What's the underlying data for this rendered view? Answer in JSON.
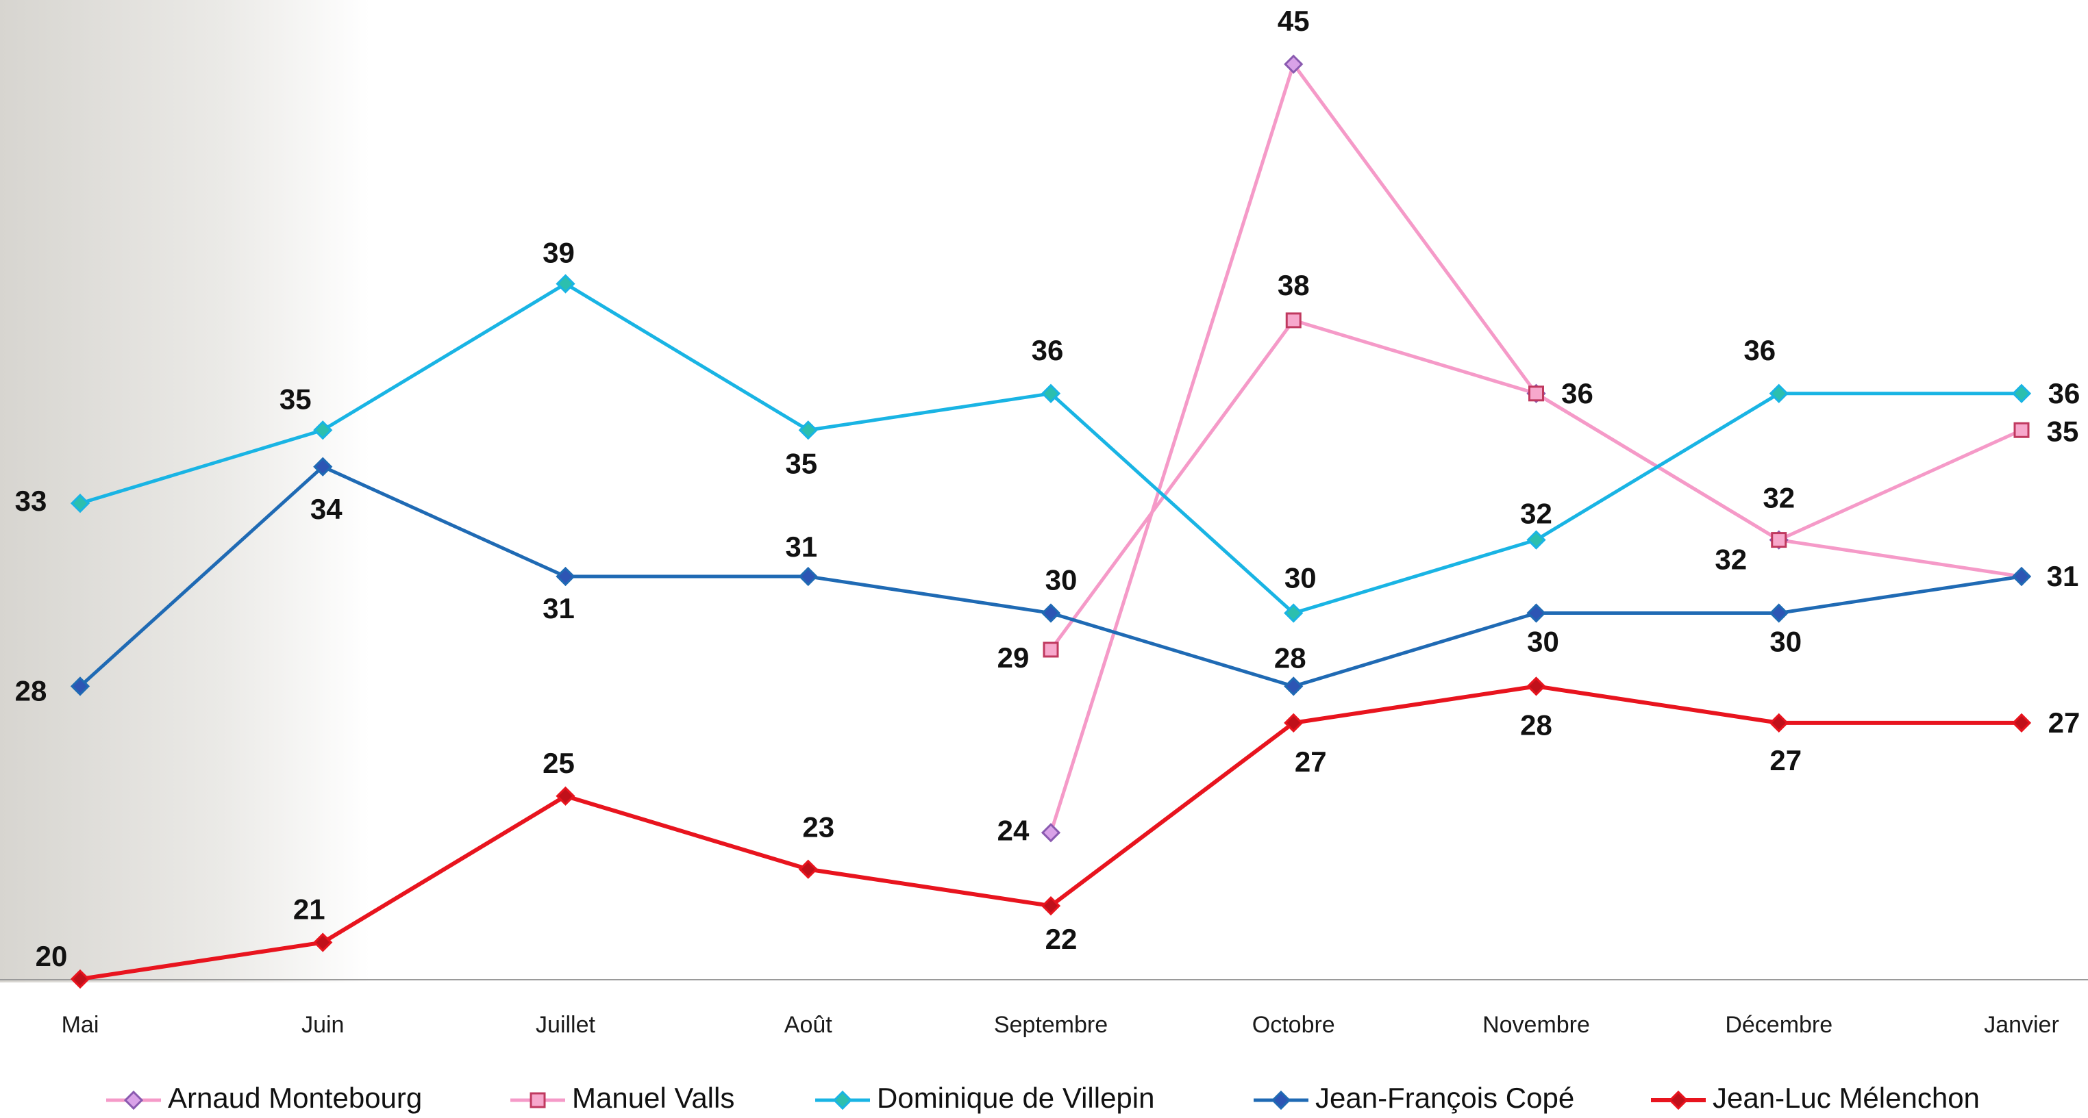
{
  "chart_data": {
    "type": "line",
    "categories": [
      "Mai",
      "Juin",
      "Juillet",
      "Août",
      "Septembre",
      "Octobre",
      "Novembre",
      "Décembre",
      "Janvier"
    ],
    "ylim": [
      19,
      47
    ],
    "grid": false,
    "legend_position": "bottom",
    "series": [
      {
        "name": "Arnaud Montebourg",
        "color": "#f59ac8",
        "marker": "diamond",
        "marker_fill": "#d9a2e8",
        "marker_stroke": "#8a5ab0",
        "values": [
          null,
          null,
          null,
          null,
          24,
          45,
          36,
          32,
          31
        ]
      },
      {
        "name": "Manuel Valls",
        "color": "#f59ac8",
        "marker": "square",
        "marker_fill": "#f7a8cc",
        "marker_stroke": "#c0395f",
        "values": [
          null,
          null,
          null,
          null,
          29,
          38,
          36,
          32,
          35
        ]
      },
      {
        "name": "Dominique de Villepin",
        "color": "#19b4e4",
        "marker": "diamond",
        "marker_fill": "#2cbfae",
        "marker_stroke": "#19b4e4",
        "values": [
          33,
          35,
          39,
          35,
          36,
          30,
          32,
          36,
          36
        ]
      },
      {
        "name": "Jean-François Copé",
        "color": "#1f6ab4",
        "marker": "diamond",
        "marker_fill": "#2d55b4",
        "marker_stroke": "#1f6ab4",
        "values": [
          28,
          34,
          31,
          31,
          30,
          28,
          30,
          30,
          31
        ]
      },
      {
        "name": "Jean-Luc Mélenchon",
        "color": "#e8141e",
        "marker": "diamond",
        "marker_fill": "#c0101a",
        "marker_stroke": "#e8141e",
        "values": [
          20,
          21,
          25,
          23,
          22,
          27,
          28,
          27,
          27
        ]
      }
    ],
    "data_labels": [
      {
        "text": "24"
      },
      {
        "text": "45"
      },
      {
        "text": "36"
      },
      {
        "text": "32"
      },
      {
        "text": "29"
      },
      {
        "text": "38"
      },
      {
        "text": "32"
      },
      {
        "text": "35"
      },
      {
        "text": "33"
      },
      {
        "text": "35"
      },
      {
        "text": "39"
      },
      {
        "text": "35"
      },
      {
        "text": "36"
      },
      {
        "text": "30"
      },
      {
        "text": "32"
      },
      {
        "text": "36"
      },
      {
        "text": "36"
      },
      {
        "text": "28"
      },
      {
        "text": "34"
      },
      {
        "text": "31"
      },
      {
        "text": "31"
      },
      {
        "text": "30"
      },
      {
        "text": "28"
      },
      {
        "text": "30"
      },
      {
        "text": "30"
      },
      {
        "text": "31"
      },
      {
        "text": "20"
      },
      {
        "text": "21"
      },
      {
        "text": "25"
      },
      {
        "text": "23"
      },
      {
        "text": "22"
      },
      {
        "text": "27"
      },
      {
        "text": "28"
      },
      {
        "text": "27"
      },
      {
        "text": "27"
      }
    ]
  }
}
